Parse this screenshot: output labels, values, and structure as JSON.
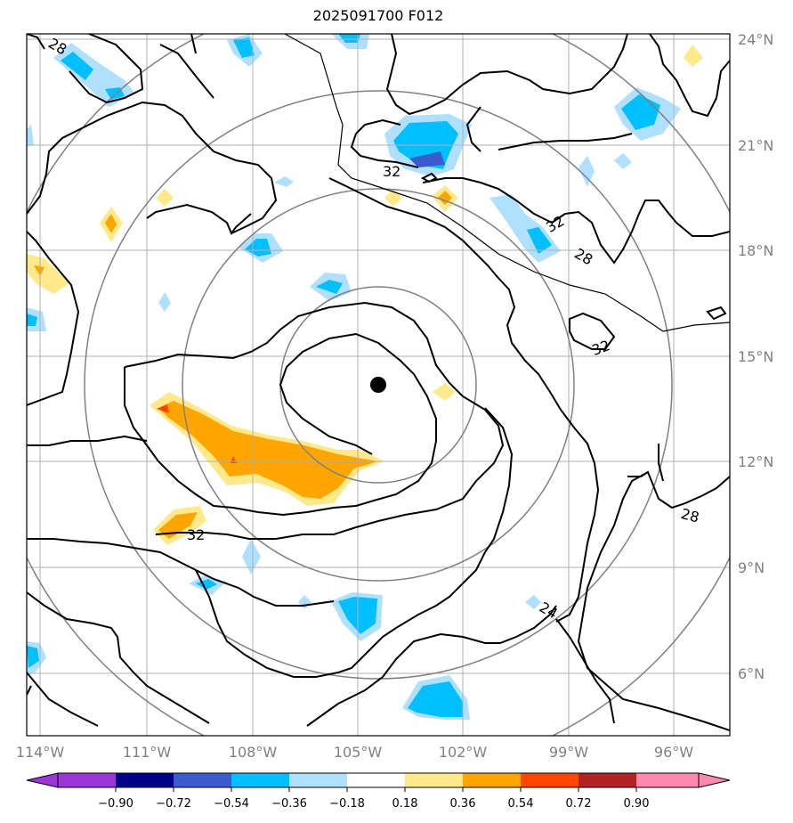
{
  "title": "2025091700 F012",
  "lat_labels": [
    "24°N",
    "21°N",
    "18°N",
    "15°N",
    "12°N",
    "9°N",
    "6°N"
  ],
  "lon_labels": [
    "114°W",
    "111°W",
    "108°W",
    "105°W",
    "102°W",
    "99°W",
    "96°W"
  ],
  "colorbar": {
    "labels": [
      "−0.90",
      "−0.72",
      "−0.54",
      "−0.36",
      "−0.18",
      "0.18",
      "0.36",
      "0.54",
      "0.72",
      "0.90"
    ],
    "colors": [
      "#9b35d6",
      "#00008b",
      "#3a5bd0",
      "#00bfff",
      "#b0e0ff",
      "#ffffff",
      "#ffe98a",
      "#ffa500",
      "#ff4500",
      "#b22222",
      "#ff88b0",
      "#ff88b0"
    ]
  },
  "contour_labels": [
    "28",
    "32",
    "32",
    "28",
    "32",
    "32",
    "28",
    "24"
  ],
  "fill_colors": {
    "lightblue": "#b0e0ff",
    "blue": "#00bfff",
    "darkblue": "#3a5bd0",
    "lightyellow": "#ffe98a",
    "orange": "#ffa500",
    "red": "#ff4500"
  },
  "center_marker": "storm-center"
}
